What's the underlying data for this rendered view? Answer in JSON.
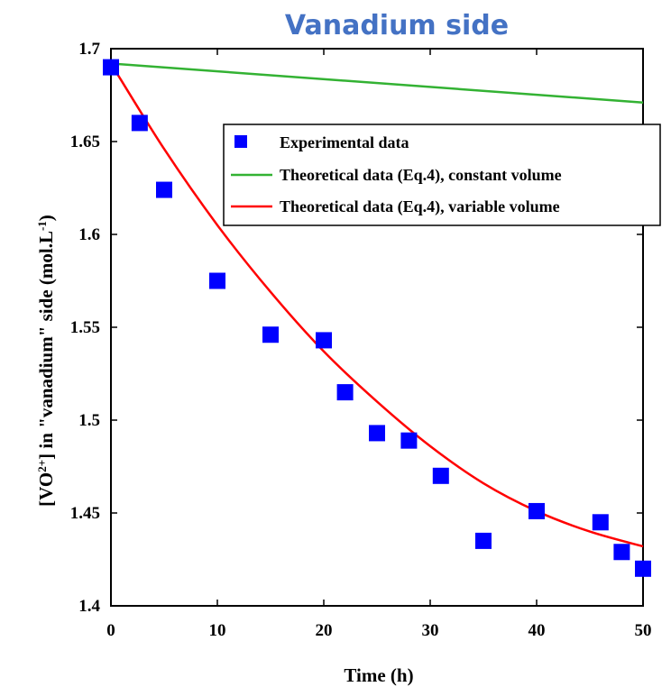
{
  "chart_data": {
    "type": "scatter",
    "title": "Vanadium side",
    "xlabel": "Time (h)",
    "ylabel": "[VO2+] in \"vanadium\" side (mol.L-1)",
    "ylabel_parts": {
      "prefix": "[VO",
      "sup1": "2+",
      "middle": "] in \"vanadium\" side (mol.L",
      "sup2": "-1",
      "suffix": ")"
    },
    "xlim": [
      0,
      50
    ],
    "ylim": [
      1.4,
      1.7
    ],
    "xticks": [
      0,
      10,
      20,
      30,
      40,
      50
    ],
    "xtick_labels": [
      "0",
      "10",
      "20",
      "30",
      "40",
      "50"
    ],
    "yticks": [
      1.4,
      1.45,
      1.5,
      1.55,
      1.6,
      1.65,
      1.7
    ],
    "ytick_labels": [
      "1.4",
      "1.45",
      "1.5",
      "1.55",
      "1.6",
      "1.65",
      "1.7"
    ],
    "grid": false,
    "legend_position": "top-right",
    "colors": {
      "title": "#4472C4",
      "experimental": "#0000FF",
      "constant": "#33B233",
      "variable": "#FF0000",
      "axis": "#000000"
    },
    "series": [
      {
        "name": "Experimental data",
        "kind": "markers",
        "x": [
          0,
          2.7,
          5,
          10,
          15,
          20,
          22,
          25,
          28,
          31,
          35,
          40,
          46,
          48,
          50
        ],
        "y": [
          1.69,
          1.66,
          1.624,
          1.575,
          1.546,
          1.543,
          1.515,
          1.493,
          1.489,
          1.47,
          1.435,
          1.451,
          1.445,
          1.429,
          1.42
        ]
      },
      {
        "name": "Theoretical data (Eq.4), constant volume",
        "kind": "line",
        "x": [
          0,
          50
        ],
        "y": [
          1.692,
          1.671
        ]
      },
      {
        "name": "Theoretical data (Eq.4), variable volume",
        "kind": "line",
        "x": [
          0,
          5,
          10,
          15,
          20,
          25,
          30,
          35,
          40,
          45,
          50
        ],
        "y": [
          1.692,
          1.646,
          1.605,
          1.569,
          1.537,
          1.51,
          1.486,
          1.466,
          1.451,
          1.44,
          1.432
        ]
      }
    ]
  }
}
